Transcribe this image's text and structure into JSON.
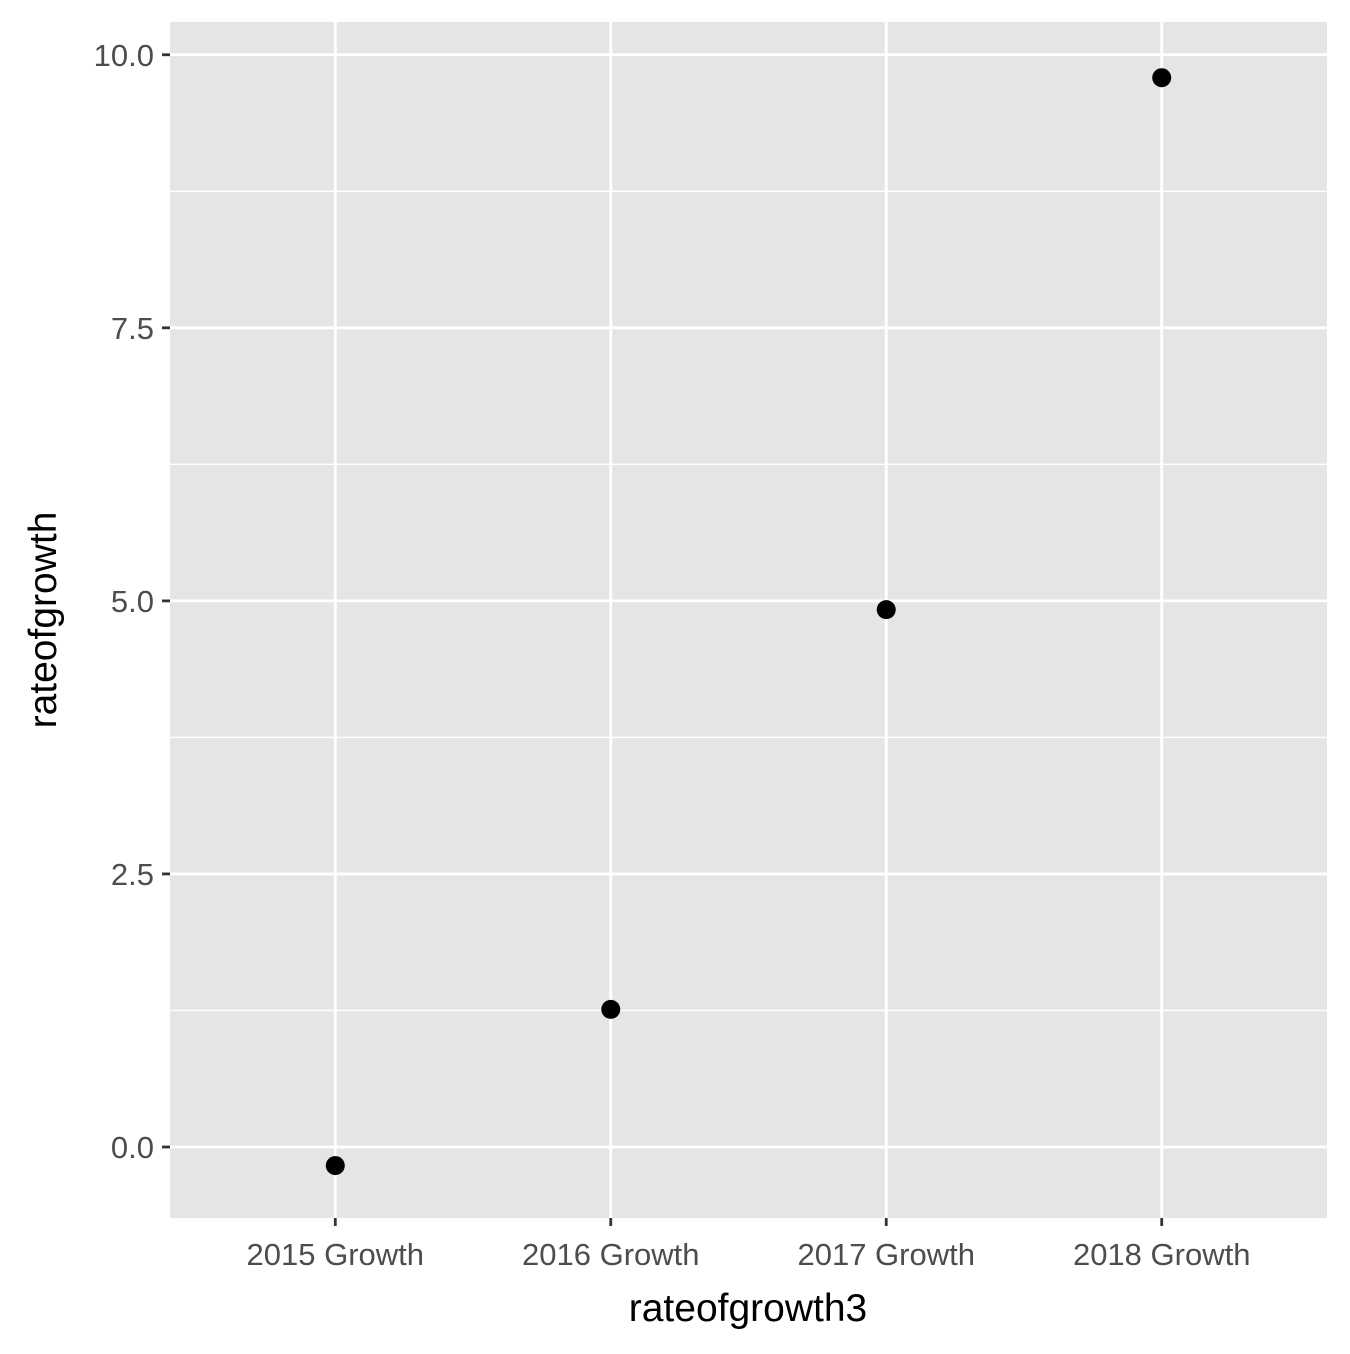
{
  "chart_data": {
    "type": "scatter",
    "xlabel": "rateofgrowth3",
    "ylabel": "rateofgrowth",
    "categories": [
      "2015 Growth",
      "2016 Growth",
      "2017 Growth",
      "2018 Growth"
    ],
    "values": [
      -0.17,
      1.26,
      4.92,
      9.79
    ],
    "ylim": [
      -0.65,
      10.3
    ],
    "yticks": [
      0.0,
      2.5,
      5.0,
      7.5,
      10.0
    ],
    "ytick_labels": [
      "0.0",
      "2.5",
      "5.0",
      "7.5",
      "10.0"
    ],
    "grid": true,
    "legend": "none",
    "colors": {
      "panel": "#e5e5e5",
      "grid": "#ffffff",
      "point": "#000000",
      "tick": "#333333",
      "tick_label": "#4d4d4d"
    }
  }
}
